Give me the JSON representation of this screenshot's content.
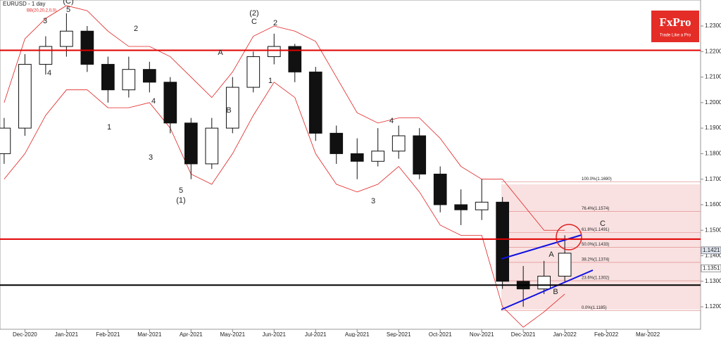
{
  "header": {
    "symbol": "EURUSD - 1 day",
    "indicator": "BB(20,20,2,0,0)"
  },
  "logo": {
    "name": "FxPro",
    "tagline": "Trade Like a Pro"
  },
  "chart_data": {
    "type": "candlestick",
    "x": [
      -0.5,
      0,
      0.5,
      1,
      1.5,
      2,
      2.5,
      3,
      3.5,
      4,
      4.5,
      5,
      5.5,
      6,
      6.5,
      7,
      7.5,
      8,
      8.5,
      9,
      9.5,
      10,
      10.5,
      11,
      11.5,
      12,
      12.5,
      13
    ],
    "open": [
      1.18,
      1.19,
      1.215,
      1.222,
      1.228,
      1.215,
      1.205,
      1.213,
      1.208,
      1.192,
      1.176,
      1.19,
      1.206,
      1.218,
      1.222,
      1.212,
      1.188,
      1.18,
      1.177,
      1.181,
      1.187,
      1.172,
      1.16,
      1.158,
      1.161,
      1.13,
      1.127,
      1.132
    ],
    "high": [
      1.194,
      1.219,
      1.226,
      1.235,
      1.23,
      1.218,
      1.218,
      1.216,
      1.21,
      1.194,
      1.194,
      1.21,
      1.22,
      1.227,
      1.223,
      1.214,
      1.191,
      1.186,
      1.19,
      1.191,
      1.19,
      1.175,
      1.166,
      1.17,
      1.163,
      1.136,
      1.138,
      1.148
    ],
    "low": [
      1.176,
      1.187,
      1.211,
      1.218,
      1.212,
      1.2,
      1.202,
      1.204,
      1.188,
      1.17,
      1.174,
      1.188,
      1.204,
      1.215,
      1.208,
      1.185,
      1.176,
      1.17,
      1.175,
      1.178,
      1.17,
      1.157,
      1.152,
      1.154,
      1.127,
      1.12,
      1.125,
      1.13
    ],
    "close": [
      1.19,
      1.215,
      1.222,
      1.228,
      1.215,
      1.205,
      1.213,
      1.208,
      1.192,
      1.176,
      1.19,
      1.206,
      1.218,
      1.222,
      1.212,
      1.188,
      1.18,
      1.177,
      1.181,
      1.187,
      1.172,
      1.16,
      1.158,
      1.161,
      1.13,
      1.127,
      1.132,
      1.141
    ],
    "up_color": "#ffffff",
    "down_color": "#111111",
    "bands": [
      {
        "color": "#e02020",
        "values": [
          1.2,
          1.225,
          1.233,
          1.238,
          1.236,
          1.228,
          1.222,
          1.222,
          1.218,
          1.21,
          1.202,
          1.212,
          1.226,
          1.23,
          1.228,
          1.224,
          1.21,
          1.196,
          1.192,
          1.194,
          1.194,
          1.186,
          1.175,
          1.17,
          1.17,
          1.16,
          1.15,
          1.15
        ]
      },
      {
        "color": "#e02020",
        "values": [
          1.17,
          1.18,
          1.195,
          1.205,
          1.205,
          1.198,
          1.198,
          1.2,
          1.19,
          1.172,
          1.168,
          1.18,
          1.195,
          1.208,
          1.202,
          1.18,
          1.168,
          1.165,
          1.168,
          1.175,
          1.165,
          1.152,
          1.148,
          1.148,
          1.12,
          1.112,
          1.118,
          1.125
        ]
      }
    ],
    "xlim": [
      -0.6,
      16.27
    ],
    "xticks": [
      {
        "value": 0,
        "label": "Dec-2020"
      },
      {
        "value": 1,
        "label": "Jan-2021"
      },
      {
        "value": 2,
        "label": "Feb-2021"
      },
      {
        "value": 3,
        "label": "Mar-2021"
      },
      {
        "value": 4,
        "label": "Apr-2021"
      },
      {
        "value": 5,
        "label": "May-2021"
      },
      {
        "value": 6,
        "label": "Jun-2021"
      },
      {
        "value": 7,
        "label": "Jul-2021"
      },
      {
        "value": 8,
        "label": "Aug-2021"
      },
      {
        "value": 9,
        "label": "Sep-2021"
      },
      {
        "value": 10,
        "label": "Oct-2021"
      },
      {
        "value": 11,
        "label": "Nov-2021"
      },
      {
        "value": 12,
        "label": "Dec-2021"
      },
      {
        "value": 13,
        "label": "Jan-2022"
      },
      {
        "value": 14,
        "label": "Feb-2022"
      },
      {
        "value": 15,
        "label": "Mar-2022"
      }
    ],
    "ylim": [
      1.1112,
      1.2402
    ],
    "yticks": [
      {
        "value": 1.23,
        "label": "1.2300"
      },
      {
        "value": 1.22,
        "label": "1.2200"
      },
      {
        "value": 1.21,
        "label": "1.2100"
      },
      {
        "value": 1.2,
        "label": "1.2000"
      },
      {
        "value": 1.19,
        "label": "1.1900"
      },
      {
        "value": 1.18,
        "label": "1.1800"
      },
      {
        "value": 1.17,
        "label": "1.1700"
      },
      {
        "value": 1.16,
        "label": "1.1600"
      },
      {
        "value": 1.15,
        "label": "1.1500"
      },
      {
        "value": 1.14,
        "label": "1.1400"
      },
      {
        "value": 1.13,
        "label": "1.1300"
      },
      {
        "value": 1.12,
        "label": "1.1200"
      }
    ],
    "levels": [
      {
        "value": 1.2205,
        "color": "#e00000"
      },
      {
        "value": 1.1465,
        "color": "#e00000"
      },
      {
        "value": 1.1285,
        "color": "#000000"
      }
    ],
    "fib": [
      {
        "value": 1.169,
        "label": "100.0%(1.1690)"
      },
      {
        "value": 1.1574,
        "label": "76.4%(1.1574)"
      },
      {
        "value": 1.1491,
        "label": "61.8%(1.1491)"
      },
      {
        "value": 1.1433,
        "label": "50.0%(1.1433)"
      },
      {
        "value": 1.1374,
        "label": "38.2%(1.1374)"
      },
      {
        "value": 1.1302,
        "label": "23.6%(1.1302)"
      },
      {
        "value": 1.1185,
        "label": "0.0%(1.1185)"
      }
    ],
    "price_tags": [
      1.1421,
      1.1351
    ],
    "annotations": [
      "(C)",
      "5",
      "3",
      "4",
      "2",
      "1",
      "4",
      "3",
      "5",
      "(1)",
      "A",
      "B",
      "(2)",
      "C",
      "2",
      "1",
      "4",
      "3",
      "A",
      "B",
      "C"
    ]
  }
}
